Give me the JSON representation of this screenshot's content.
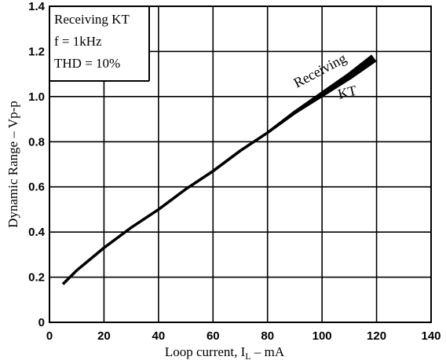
{
  "chart_data": {
    "type": "line",
    "xlabel": "Loop current, I",
    "xlabel_subscript": "L",
    "xlabel_unit": " – mA",
    "ylabel": "Dynamic Range – Vp-p",
    "xlim": [
      0,
      140
    ],
    "ylim": [
      0,
      1.4
    ],
    "xticks": [
      0,
      20,
      40,
      60,
      80,
      100,
      120,
      140
    ],
    "yticks": [
      0,
      0.2,
      0.4,
      0.6,
      0.8,
      1.0,
      1.2,
      1.4
    ],
    "xtick_labels": [
      "0",
      "20",
      "40",
      "60",
      "80",
      "100",
      "120",
      "140"
    ],
    "ytick_labels": [
      "0",
      "0.2",
      "0.4",
      "0.6",
      "0.8",
      "1.0",
      "1.2",
      "1.4"
    ],
    "grid": true,
    "annotation_lines": [
      "Receiving KT",
      "f = 1kHz",
      "THD = 10%"
    ],
    "curve_label": [
      "Receiving",
      "KT"
    ],
    "series": [
      {
        "x": [
          5,
          10,
          20,
          30,
          40,
          50,
          60,
          70,
          80,
          90,
          100,
          110,
          119
        ],
        "y": [
          0.17,
          0.23,
          0.33,
          0.42,
          0.5,
          0.59,
          0.67,
          0.76,
          0.84,
          0.93,
          1.01,
          1.09,
          1.17
        ]
      }
    ]
  }
}
